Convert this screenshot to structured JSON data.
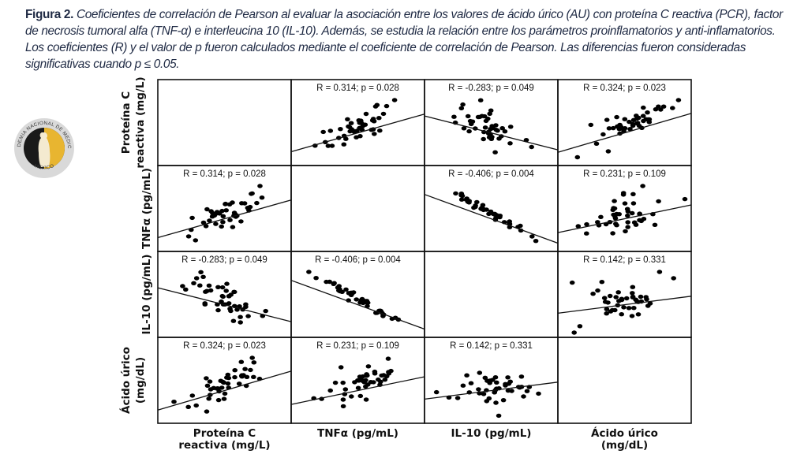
{
  "caption": {
    "label": "Figura 2.",
    "text": "Coeficientes de correlación de Pearson al evaluar la asociación entre los valores de ácido úrico (AU) con proteína C reactiva (PCR), factor de necrosis tumoral alfa (TNF-α) e interleucina 10 (IL-10). Además, se estudia la relación entre los parámetros proinflamatorios y anti-inflamatorios. Los coeficientes (R) y el valor de p fueron calculados mediante el coeficiente de correlación de Pearson. Las diferencias fueron consideradas significativas cuando p ≤ 0.05."
  },
  "logo": {
    "text": "ACADEMIA NACIONAL DE MEDICINA",
    "country": "MÉXICO",
    "colors": {
      "ring": "#b8b8b8",
      "inner": "#1a1a1a",
      "accent": "#e8b530"
    }
  },
  "chart_data": {
    "type": "scatter",
    "layout": "scatterplot-matrix",
    "variables": [
      {
        "row_label": [
          "Proteína C",
          "reactiva (mg/L)"
        ],
        "col_label": [
          "Proteína C",
          "reactiva (mg/L)"
        ]
      },
      {
        "row_label": [
          "TNFα (pg/mL)"
        ],
        "col_label": [
          "TNFα (pg/mL)"
        ]
      },
      {
        "row_label": [
          "IL-10 (pg/mL)"
        ],
        "col_label": [
          "IL-10 (pg/mL)"
        ]
      },
      {
        "row_label": [
          "Ácido úrico",
          "(mg/dL)"
        ],
        "col_label": [
          "Ácido úrico",
          "(mg/dL)"
        ]
      }
    ],
    "cells": [
      {
        "row": 0,
        "col": 1,
        "label": "R = 0.314; p = 0.028",
        "r": 0.314,
        "p": 0.028
      },
      {
        "row": 0,
        "col": 2,
        "label": "R = -0.283; p = 0.049",
        "r": -0.283,
        "p": 0.049
      },
      {
        "row": 0,
        "col": 3,
        "label": "R = 0.324; p = 0.023",
        "r": 0.324,
        "p": 0.023
      },
      {
        "row": 1,
        "col": 0,
        "label": "R = 0.314; p = 0.028",
        "r": 0.314,
        "p": 0.028
      },
      {
        "row": 1,
        "col": 2,
        "label": "R = -0.406; p = 0.004",
        "r": -0.406,
        "p": 0.004
      },
      {
        "row": 1,
        "col": 3,
        "label": "R = 0.231; p = 0.109",
        "r": 0.231,
        "p": 0.109
      },
      {
        "row": 2,
        "col": 0,
        "label": "R = -0.283; p = 0.049",
        "r": -0.283,
        "p": 0.049
      },
      {
        "row": 2,
        "col": 1,
        "label": "R = -0.406; p = 0.004",
        "r": -0.406,
        "p": 0.004
      },
      {
        "row": 2,
        "col": 3,
        "label": "R = 0.142; p = 0.331",
        "r": 0.142,
        "p": 0.331
      },
      {
        "row": 3,
        "col": 0,
        "label": "R = 0.324; p = 0.023",
        "r": 0.324,
        "p": 0.023
      },
      {
        "row": 3,
        "col": 1,
        "label": "R = 0.231; p = 0.109",
        "r": 0.231,
        "p": 0.109
      },
      {
        "row": 3,
        "col": 2,
        "label": "R = 0.142; p = 0.331",
        "r": 0.142,
        "p": 0.331
      }
    ],
    "point_color": "#000000",
    "grid": false
  }
}
